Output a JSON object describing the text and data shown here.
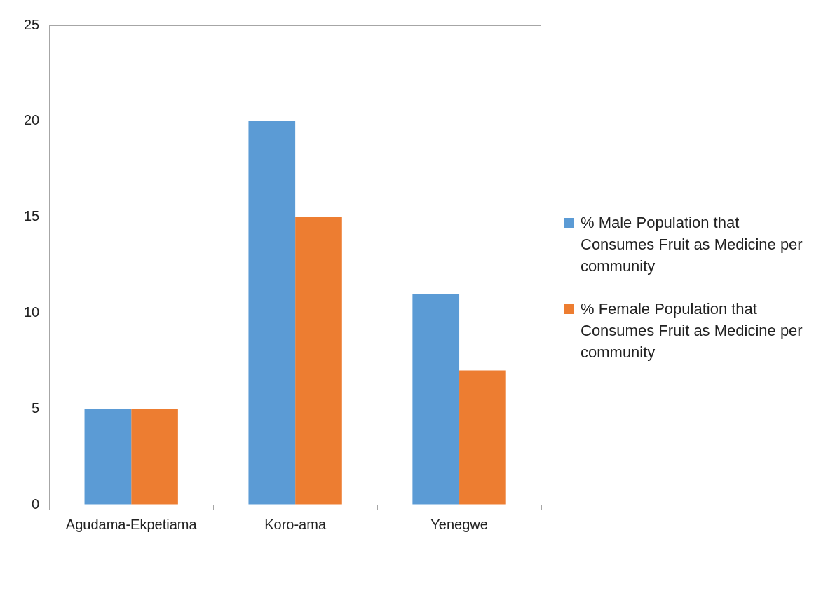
{
  "chart_data": {
    "type": "bar",
    "categories": [
      "Agudama-Ekpetiama",
      "Koro-ama",
      "Yenegwe"
    ],
    "series": [
      {
        "name": "% Male Population that Consumes Fruit as Medicine per community",
        "color": "#5b9bd5",
        "values": [
          5,
          20,
          11
        ]
      },
      {
        "name": "% Female Population that Consumes Fruit as Medicine per community",
        "color": "#ed7d31",
        "values": [
          5,
          15,
          7
        ]
      }
    ],
    "ylim": [
      0,
      25
    ],
    "yticks": [
      0,
      5,
      10,
      15,
      20,
      25
    ],
    "grid": "y",
    "legend": "right"
  }
}
